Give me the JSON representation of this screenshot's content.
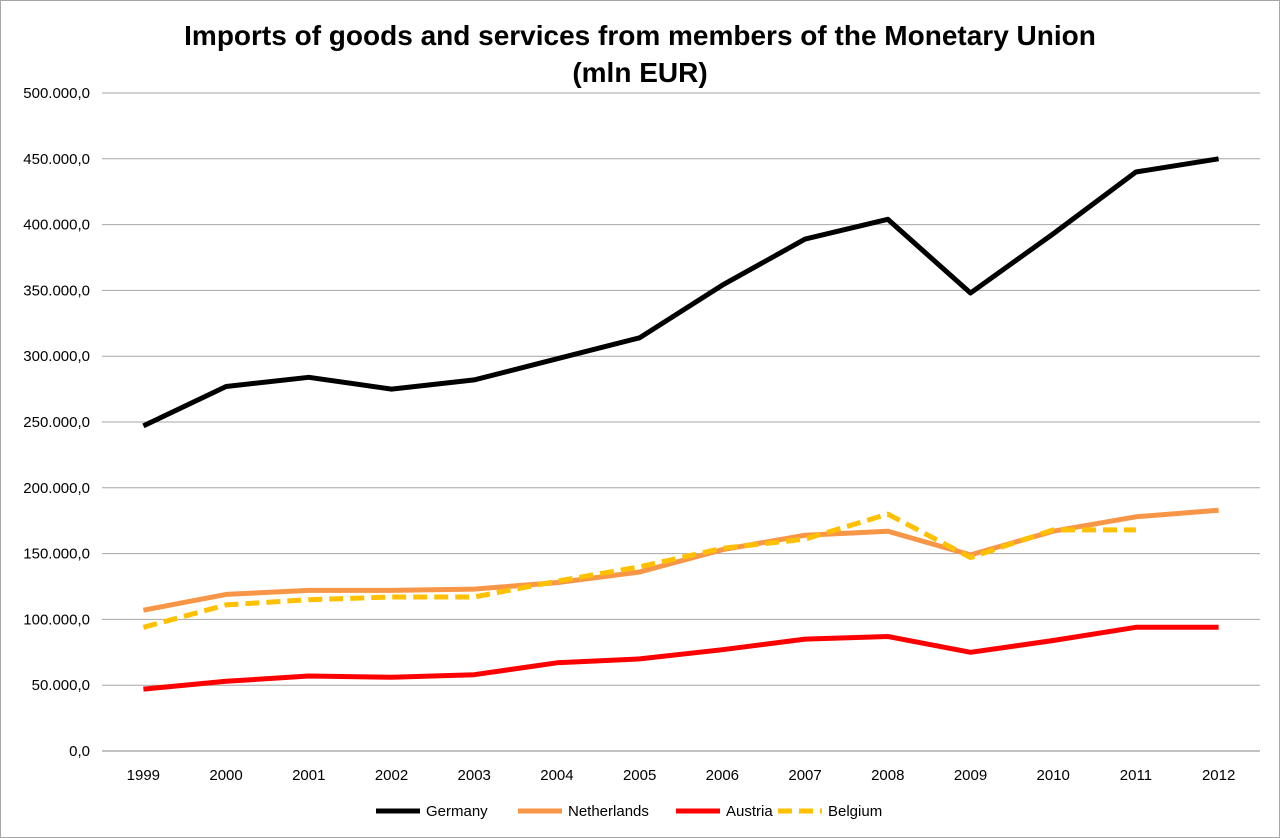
{
  "chart_data": {
    "type": "line",
    "title": "Imports of goods and services from members of the Monetary Union",
    "subtitle": "(mln EUR)",
    "xlabel": "",
    "ylabel": "",
    "ylim": [
      0,
      500000
    ],
    "y_ticks": [
      0,
      50000,
      100000,
      150000,
      200000,
      250000,
      300000,
      350000,
      400000,
      450000,
      500000
    ],
    "y_tick_labels": [
      "0,0",
      "50.000,0",
      "100.000,0",
      "150.000,0",
      "200.000,0",
      "250.000,0",
      "300.000,0",
      "350.000,0",
      "400.000,0",
      "450.000,0",
      "500.000,0"
    ],
    "categories": [
      "1999",
      "2000",
      "2001",
      "2002",
      "2003",
      "2004",
      "2005",
      "2006",
      "2007",
      "2008",
      "2009",
      "2010",
      "2011",
      "2012"
    ],
    "grid": "horizontal",
    "legend_position": "bottom",
    "series": [
      {
        "name": "Germany",
        "color": "#000000",
        "style": "solid",
        "values": [
          247000,
          277000,
          284000,
          275000,
          282000,
          298000,
          314000,
          354000,
          389000,
          404000,
          348000,
          393000,
          440000,
          450000
        ]
      },
      {
        "name": "Netherlands",
        "color": "#f79646",
        "style": "solid",
        "values": [
          107000,
          119000,
          122000,
          122000,
          123000,
          128000,
          136000,
          153000,
          164000,
          167000,
          149000,
          167000,
          178000,
          183000
        ]
      },
      {
        "name": "Austria",
        "color": "#ff0000",
        "style": "solid",
        "values": [
          47000,
          53000,
          57000,
          56000,
          58000,
          67000,
          70000,
          77000,
          85000,
          87000,
          75000,
          84000,
          94000,
          94000
        ]
      },
      {
        "name": "Belgium",
        "color": "#ffc000",
        "style": "dashed",
        "values": [
          94000,
          111000,
          115000,
          117000,
          117000,
          129000,
          140000,
          154000,
          161000,
          180000,
          147000,
          168000,
          168000,
          null
        ]
      }
    ]
  }
}
